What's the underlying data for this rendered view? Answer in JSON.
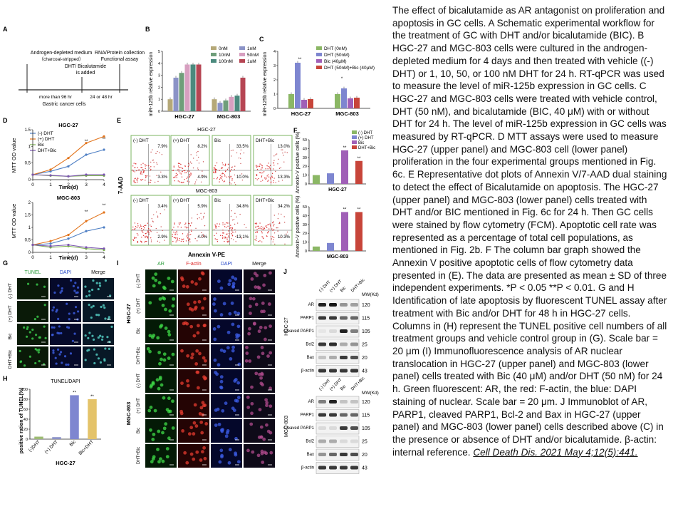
{
  "caption": {
    "body": "The effect of bicalutamide as AR antagonist on proliferation and apoptosis in GC cells. A Schematic experimental workflow for the treatment of GC with DHT and/or bicalutamide (BIC). B HGC-27 and MGC-803 cells were cultured in the androgen-depleted medium for 4 days and then treated with vehicle ((-) DHT) or 1, 10, 50, or 100 nM DHT for 24 h. RT-qPCR was used to measure the level of miR-125b expression in GC cells. C HGC-27 and MGC-803 cells were treated with vehicle control, DHT (50 nM), and bicalutamide (BIC, 40 μM) with or without DHT for 24 h. The level of miR-125b expression in GC cells was measured by RT-qPCR. D MTT assays were used to measure HGC-27 (upper panel) and MGC-803 cell (lower panel) proliferation in the four experimental groups mentioned in Fig. 6c. E Representative dot plots of Annexin V/7-AAD dual staining to detect the effect of Bicalutamide on apoptosis. The HGC-27 (upper panel) and MGC-803 (lower panel) cells treated with DHT and/or BIC mentioned in Fig. 6c for 24 h. Then GC cells were stained by flow cytometry (FCM). Apoptotic cell rate was represented as a percentage of total cell populations, as mentioned in Fig. 2b. F The column bar graph showed the Annexin V positive apoptotic cells of flow cytometry data presented in (E). The data are presented as mean ± SD of three independent experiments. *P < 0.05 **P < 0.01. G and H Identification of late apoptosis by fluorescent TUNEL assay after treatment with Bic and/or DHT for 48 h in HGC-27 cells. Columns in (H) represent the TUNEL positive cell numbers of all treatment groups and vehicle control group in (G). Scale bar = 20 μm (I) Immunofluorescence analysis of AR nuclear translocation in HGC-27 (upper panel) and MGC-803 (lower panel) cells treated with Bic (40 μM) and/or DHT (50 nM) for 24 h. Green fluorescent: AR, the red: F-actin, the blue: DAPI staining of nuclear. Scale bar = 20 μm. J Immunoblot of AR, PARP1, cleaved PARP1, Bcl-2 and Bax in HGC-27 (upper panel) and MGC-803 (lower panel) cells described above (C) in the presence or absence of DHT and/or bicalutamide. β-actin: internal reference.",
    "citation": "Cell Death Dis. 2021 May 4;12(5):441."
  },
  "panelA": {
    "letter": "A",
    "left_label": "Androgen-depleted medium",
    "left_label2": "（charcoal-stripped）",
    "mid_label": "DHT/ Bicalutamide",
    "mid_label2": "is added",
    "right_label": "RNA/Protein collection",
    "right_label2": "Functional assay",
    "time1": "more than 96 hr",
    "time2": "24 or 48 hr",
    "bottom": "Gastric cancer cells"
  },
  "panelB": {
    "letter": "B",
    "ylabel": "miR-125b relative expression",
    "legend": [
      "0nM",
      "10nM",
      "100nM",
      "1nM",
      "50nM",
      "1uM"
    ],
    "colors": [
      "#b5a878",
      "#6f9e7a",
      "#4b8a7e",
      "#8b93c7",
      "#d79fc0",
      "#b64553"
    ]
  },
  "panelC": {
    "letter": "C",
    "ylabel": "miR-125b relative expression",
    "legend": [
      "DHT (0nM)",
      "DHT (50nM)",
      "Bic (40μM)",
      "DHT (50nM)+Bic (40μM)"
    ],
    "colors": [
      "#8bb765",
      "#7e86d0",
      "#a05fb7",
      "#c7453a"
    ]
  },
  "panelD": {
    "letter": "D",
    "ylabel": "MTT OD value",
    "xlabel": "Time(d)",
    "legend": [
      "(-) DHT",
      "(+) DHT",
      "Bic",
      "DHT+Bic"
    ],
    "colors": [
      "#4e7fc4",
      "#e2741c",
      "#7ab04c",
      "#7b55b0"
    ]
  },
  "panelE": {
    "letter": "E",
    "ylabel": "7-AAD",
    "xlabel": "Annexin V-PE",
    "top_title": "HGC-27",
    "bottom_title": "MGC-803",
    "labels": [
      "(-) DHT",
      "(+) DHT",
      "Bic",
      "DHT+Bic"
    ],
    "top_ur": [
      "7.9%",
      "8.2%",
      "33.5%",
      "13.0%"
    ],
    "top_lr": [
      "3.3%",
      "4.9%",
      "10.0%",
      "13.3%"
    ],
    "bot_ur": [
      "3.4%",
      "5.9%",
      "34.8%",
      "34.2%"
    ],
    "bot_lr": [
      "2.9%",
      "4.0%",
      "13.1%",
      "10.3%"
    ]
  },
  "panelF": {
    "letter": "F",
    "ylabel": "Annexin-V positive cells (%)",
    "legend": [
      "(-) DHT",
      "(+) DHT",
      "Bic",
      "DHT+Bic"
    ],
    "colors": [
      "#8bb765",
      "#7e86d0",
      "#a05fb7",
      "#c7453a"
    ]
  },
  "panelG": {
    "letter": "G",
    "cols": [
      "TUNEL",
      "DAPI",
      "Merge"
    ],
    "rows": [
      "(-) DHT",
      "(+) DHT",
      "Bic",
      "DHT+Bic"
    ]
  },
  "panelH": {
    "letter": "H",
    "title": "TUNEL/DAPI",
    "ylabel": "positive ration of TUNEL(%)",
    "xlabel": "HGC-27",
    "categories": [
      "(-)DHT",
      "(+) DHT",
      "Bic",
      "Bic+DHT"
    ],
    "colors": [
      "#9dbb74",
      "#8c93c8",
      "#7e86d0",
      "#e4c36a"
    ]
  },
  "panelI": {
    "letter": "I",
    "cols": [
      "AR",
      "F-actin",
      "DAPI",
      "Merge"
    ],
    "rows": [
      "(-) DHT",
      "(+) DHT",
      "Bic",
      "DHT+Bic"
    ],
    "top_cell": "HGC-27",
    "bot_cell": "MGC-803"
  },
  "panelJ": {
    "letter": "J",
    "lanes": [
      "(-) DHT",
      "(+) DHT",
      "Bic",
      "DHT+Bic"
    ],
    "mw_header": "MW(Kd)",
    "top_cell": "HGC-27",
    "bot_cell": "MGC-803",
    "top_bands": [
      "AR",
      "PARP1",
      "Cleaved PARP1",
      "Bcl2",
      "Bax",
      "β-actin"
    ],
    "top_mw": [
      "120",
      "115",
      "105",
      "25",
      "20",
      "43"
    ],
    "bot_bands": [
      "AR",
      "PARP1",
      "Cleaved PARP1",
      "Bcl2",
      "Bax",
      "β-actin"
    ],
    "bot_mw": [
      "120",
      "115",
      "105",
      "25",
      "20",
      "43"
    ]
  },
  "chart_data": [
    {
      "type": "bar",
      "title": "",
      "ylabel": "miR-125b relative expression",
      "categories": [
        "HGC-27",
        "MGC-803"
      ],
      "ylim": [
        0,
        5
      ],
      "series": [
        {
          "name": "0nM",
          "values": [
            1.0,
            1.0
          ]
        },
        {
          "name": "1nM",
          "values": [
            2.8,
            0.7
          ]
        },
        {
          "name": "10nM",
          "values": [
            3.2,
            0.9
          ]
        },
        {
          "name": "50nM",
          "values": [
            3.9,
            1.2
          ]
        },
        {
          "name": "100nM",
          "values": [
            3.9,
            1.3
          ]
        },
        {
          "name": "1uM",
          "values": [
            3.9,
            2.8
          ]
        }
      ]
    },
    {
      "type": "bar",
      "title": "",
      "ylabel": "miR-125b relative expression",
      "categories": [
        "HGC-27",
        "MGC-803"
      ],
      "ylim": [
        0,
        4
      ],
      "series": [
        {
          "name": "DHT (0nM)",
          "values": [
            1.0,
            1.0
          ]
        },
        {
          "name": "DHT (50nM)",
          "values": [
            3.2,
            1.4
          ]
        },
        {
          "name": "Bic (40μM)",
          "values": [
            0.6,
            0.7
          ]
        },
        {
          "name": "DHT (50nM)+Bic (40μM)",
          "values": [
            0.65,
            0.75
          ]
        }
      ]
    },
    {
      "type": "line",
      "title": "HGC-27",
      "xlabel": "Time(d)",
      "ylabel": "MTT OD value",
      "x": [
        0,
        1,
        2,
        3,
        4
      ],
      "ylim": [
        0,
        1.5
      ],
      "series": [
        {
          "name": "(-) DHT",
          "values": [
            0.15,
            0.25,
            0.4,
            0.75,
            0.9
          ]
        },
        {
          "name": "(+) DHT",
          "values": [
            0.15,
            0.3,
            0.65,
            1.1,
            1.3
          ]
        },
        {
          "name": "Bic",
          "values": [
            0.15,
            0.12,
            0.1,
            0.12,
            0.12
          ]
        },
        {
          "name": "DHT+Bic",
          "values": [
            0.15,
            0.13,
            0.1,
            0.15,
            0.15
          ]
        }
      ]
    },
    {
      "type": "line",
      "title": "MGC-803",
      "xlabel": "Time(d)",
      "ylabel": "MTT OD value",
      "x": [
        0,
        1,
        2,
        3,
        4
      ],
      "ylim": [
        0,
        2.0
      ],
      "series": [
        {
          "name": "(-) DHT",
          "values": [
            0.3,
            0.35,
            0.55,
            0.85,
            1.0
          ]
        },
        {
          "name": "(+) DHT",
          "values": [
            0.3,
            0.45,
            0.7,
            1.25,
            1.6
          ]
        },
        {
          "name": "Bic",
          "values": [
            0.3,
            0.2,
            0.25,
            0.15,
            0.1
          ]
        },
        {
          "name": "DHT+Bic",
          "values": [
            0.3,
            0.25,
            0.3,
            0.2,
            0.15
          ]
        }
      ]
    },
    {
      "type": "bar",
      "title": "HGC-27",
      "ylabel": "Annexin-V positive cells (%)",
      "categories": [
        "(-) DHT",
        "(+) DHT",
        "Bic",
        "DHT+Bic"
      ],
      "ylim": [
        0,
        50
      ],
      "values": [
        10,
        12,
        38,
        26
      ]
    },
    {
      "type": "bar",
      "title": "MGC-803",
      "ylabel": "Annexin-V positive cells (%)",
      "categories": [
        "(-) DHT",
        "(+) DHT",
        "Bic",
        "DHT+Bic"
      ],
      "ylim": [
        0,
        50
      ],
      "values": [
        5,
        9,
        44,
        44
      ]
    },
    {
      "type": "bar",
      "title": "TUNEL/DAPI",
      "xlabel": "HGC-27",
      "ylabel": "positive ration of TUNEL(%)",
      "categories": [
        "(-)DHT",
        "(+) DHT",
        "Bic",
        "Bic+DHT"
      ],
      "ylim": [
        0,
        100
      ],
      "values": [
        5,
        4,
        88,
        80
      ]
    }
  ]
}
